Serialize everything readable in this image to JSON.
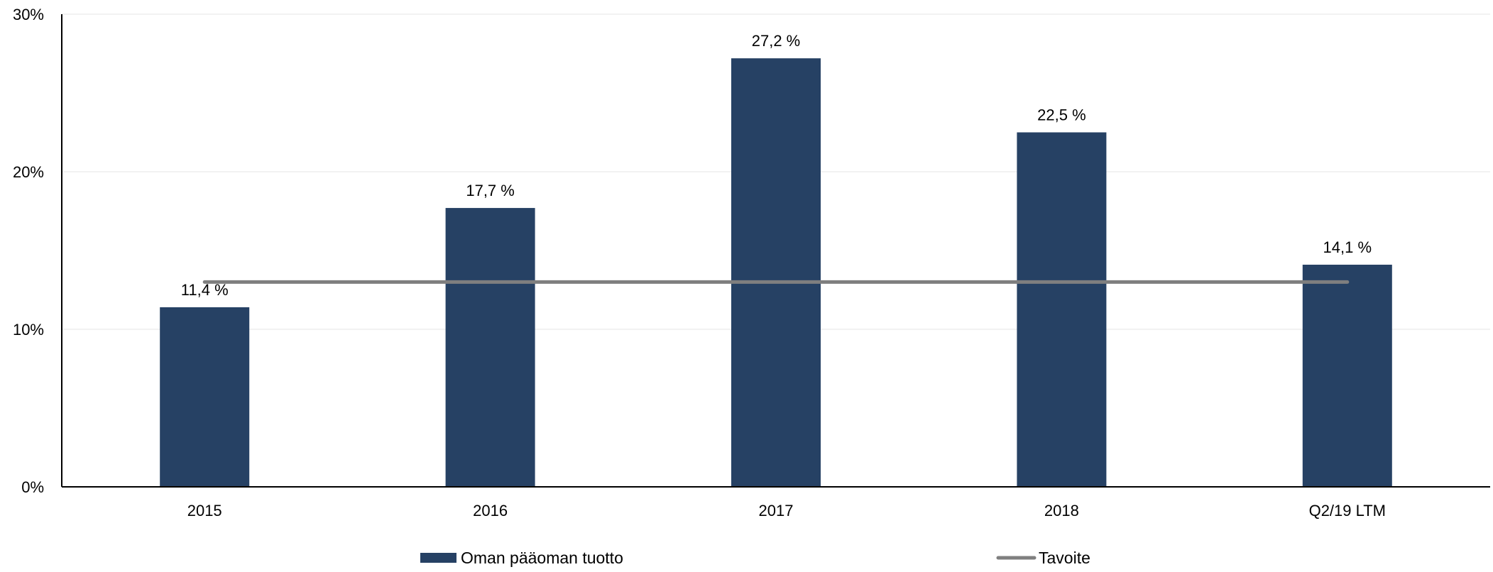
{
  "chart_data": {
    "type": "bar",
    "categories": [
      "2015",
      "2016",
      "2017",
      "2018",
      "Q2/19 LTM"
    ],
    "series": [
      {
        "name": "Oman pääoman tuotto",
        "kind": "bar",
        "color": "#264164",
        "values": [
          11.4,
          17.7,
          27.2,
          22.5,
          14.1
        ],
        "data_labels": [
          "11,4 %",
          "17,7 %",
          "27,2 %",
          "22,5 %",
          "14,1 %"
        ]
      },
      {
        "name": "Tavoite",
        "kind": "line",
        "color": "#7f7f7f",
        "values": [
          13,
          13,
          13,
          13,
          13
        ]
      }
    ],
    "ylim": [
      0,
      30
    ],
    "yticks": [
      0,
      10,
      20,
      30
    ],
    "ytick_labels": [
      "0%",
      "10%",
      "20%",
      "30%"
    ],
    "grid": true,
    "legend_position": "bottom"
  }
}
